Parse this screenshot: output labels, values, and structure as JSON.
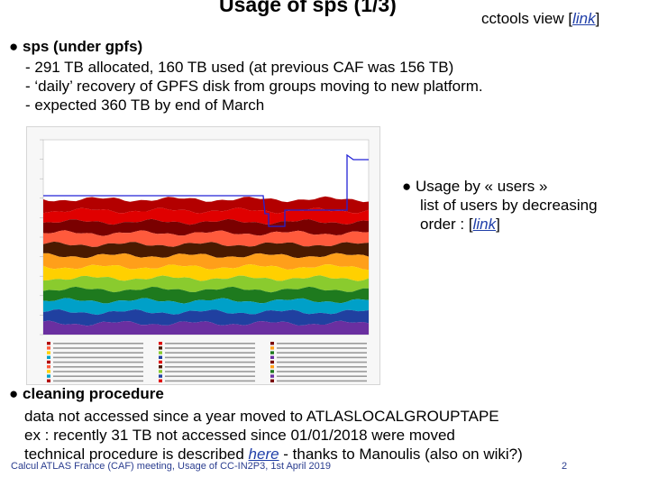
{
  "slide": {
    "title": "Usage of sps (1/3)",
    "ctools_prefix": "cctools view [",
    "ctools_link": "link",
    "ctools_suffix": "]"
  },
  "sps": {
    "bullet": "●",
    "heading": "sps (under gpfs)",
    "lines": [
      "- 291 TB allocated, 160 TB used (at previous CAF was 156 TB)",
      "- ‘daily’ recovery of GPFS disk from groups moving to new platform.",
      "- expected 360 TB by end of March"
    ]
  },
  "usage": {
    "bullet": "●",
    "heading": "Usage by « users »",
    "line2": "list of users by decreasing",
    "line3_prefix": "order : [",
    "link": "link",
    "line3_suffix": "]"
  },
  "cleaning": {
    "bullet": "●",
    "heading": "cleaning procedure",
    "line1": "data not accessed since a year moved to ATLASLOCALGROUPTAPE",
    "line2": "ex : recently 31 TB not accessed since 01/01/2018 were moved",
    "line3_prefix": "technical procedure is described ",
    "here": "here",
    "line3_suffix": " - thanks to Manoulis (also on wiki?)"
  },
  "footer": {
    "text": "Calcul ATLAS France (CAF) meeting, Usage of CC-IN2P3, 1st April 2019",
    "page": "2"
  },
  "plot": {
    "colors": [
      "#b30000",
      "#e00000",
      "#7a0000",
      "#ff5a3c",
      "#4a1a00",
      "#ff9f1a",
      "#ffd000",
      "#8acb2e",
      "#1e7a1e",
      "#00a0c8",
      "#2040a0",
      "#6a2fa0"
    ],
    "allocation_color": "#2323d6"
  }
}
